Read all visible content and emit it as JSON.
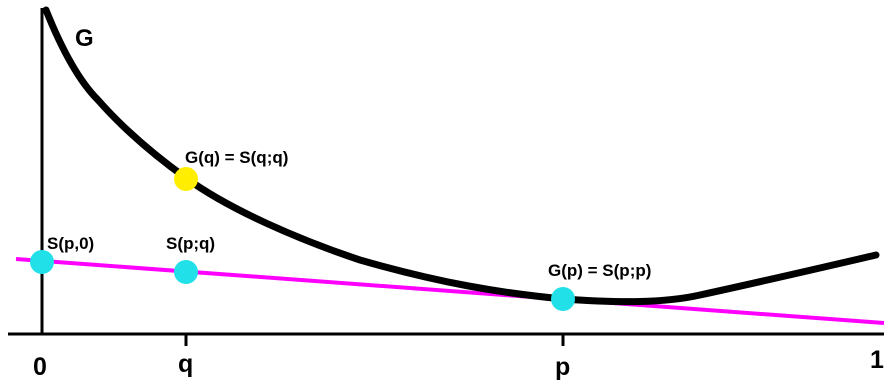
{
  "figure": {
    "colors": {
      "background": "#ffffff",
      "axes": "#000000",
      "curve": "#000000",
      "tangent": "#ff00ff",
      "point_q_on_curve": "#ffee00",
      "point_on_tangent": "#22e0e8"
    },
    "curve_label": "G",
    "tangent_line_label": "",
    "x_axis": {
      "tick_labels": [
        "0",
        "q",
        "p",
        "1"
      ]
    },
    "points": {
      "g_of_q": {
        "label": "G(q) = S(q;q)",
        "color_role": "point_q_on_curve"
      },
      "s_p_0": {
        "label": "S(p,0)",
        "color_role": "point_on_tangent"
      },
      "s_p_q": {
        "label": "S(p;q)",
        "color_role": "point_on_tangent"
      },
      "g_of_p": {
        "label": "G(p) = S(p;p)",
        "color_role": "point_on_tangent"
      }
    }
  }
}
